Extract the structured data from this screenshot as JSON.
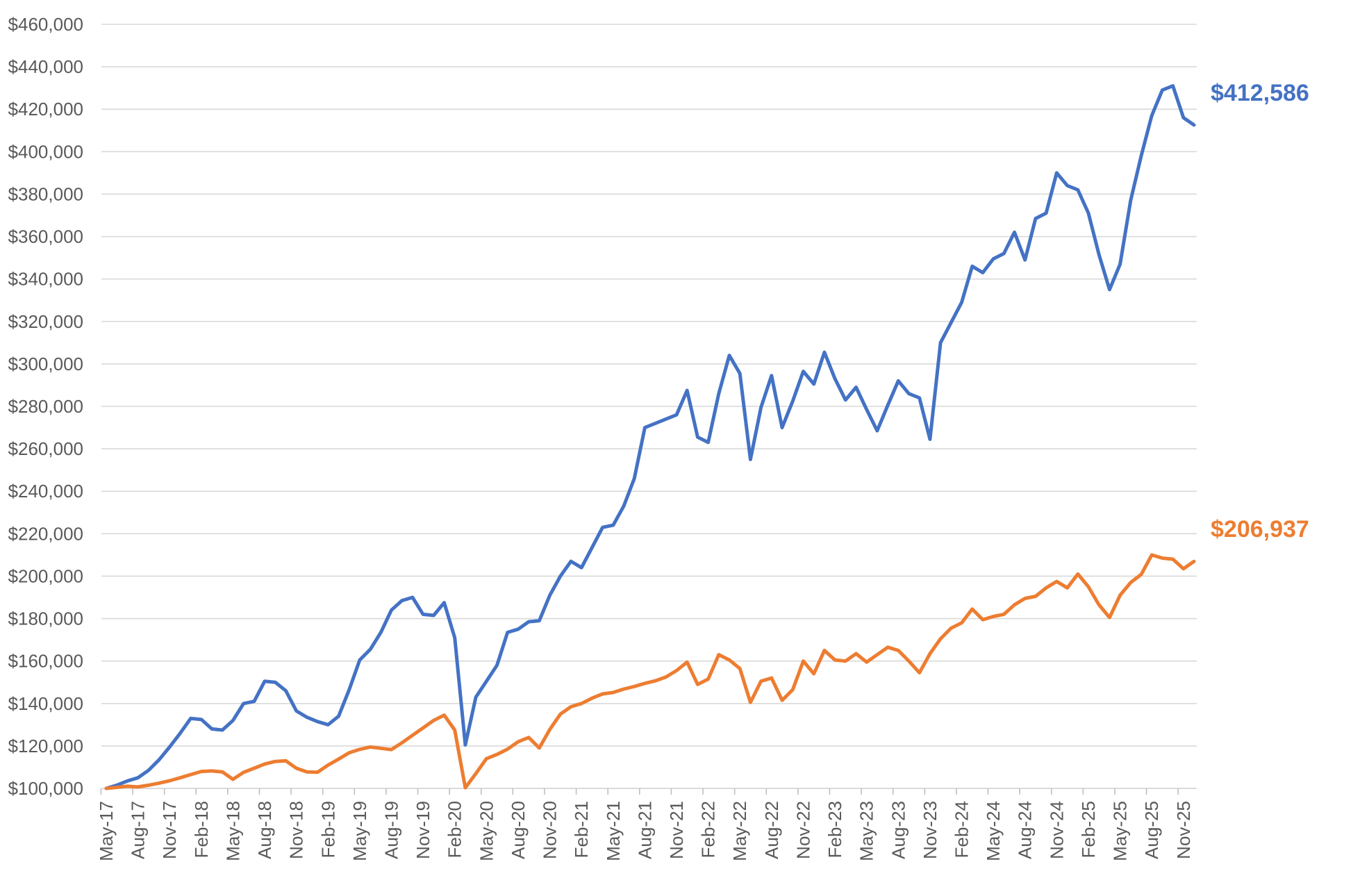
{
  "chart_data": {
    "type": "line",
    "title": "",
    "xlabel": "",
    "ylabel": "",
    "grid": "horizontal",
    "legend": "none",
    "ylim": [
      100000,
      460000
    ],
    "y_step": 20000,
    "y_tick_labels": [
      "$100,000",
      "$120,000",
      "$140,000",
      "$160,000",
      "$180,000",
      "$200,000",
      "$220,000",
      "$240,000",
      "$260,000",
      "$280,000",
      "$300,000",
      "$320,000",
      "$340,000",
      "$360,000",
      "$380,000",
      "$400,000",
      "$420,000",
      "$440,000",
      "$460,000"
    ],
    "x_tick_labels": [
      "May-17",
      "Aug-17",
      "Nov-17",
      "Feb-18",
      "May-18",
      "Aug-18",
      "Nov-18",
      "Feb-19",
      "May-19",
      "Aug-19",
      "Nov-19",
      "Feb-20",
      "May-20",
      "Aug-20",
      "Nov-20",
      "Feb-21",
      "May-21",
      "Aug-21",
      "Nov-21",
      "Feb-22",
      "May-22",
      "Aug-22",
      "Nov-22",
      "Feb-23",
      "May-23",
      "Aug-23",
      "Nov-23",
      "Feb-24",
      "May-24",
      "Aug-24",
      "Nov-24",
      "Feb-25",
      "May-25",
      "Aug-25",
      "Nov-25"
    ],
    "x_label_every": 3,
    "months": [
      "May-17",
      "Jun-17",
      "Jul-17",
      "Aug-17",
      "Sep-17",
      "Oct-17",
      "Nov-17",
      "Dec-17",
      "Jan-18",
      "Feb-18",
      "Mar-18",
      "Apr-18",
      "May-18",
      "Jun-18",
      "Jul-18",
      "Aug-18",
      "Sep-18",
      "Oct-18",
      "Nov-18",
      "Dec-18",
      "Jan-19",
      "Feb-19",
      "Mar-19",
      "Apr-19",
      "May-19",
      "Jun-19",
      "Jul-19",
      "Aug-19",
      "Sep-19",
      "Oct-19",
      "Nov-19",
      "Dec-19",
      "Jan-20",
      "Feb-20",
      "Mar-20",
      "Apr-20",
      "May-20",
      "Jun-20",
      "Jul-20",
      "Aug-20",
      "Sep-20",
      "Oct-20",
      "Nov-20",
      "Dec-20",
      "Jan-21",
      "Feb-21",
      "Mar-21",
      "Apr-21",
      "May-21",
      "Jun-21",
      "Jul-21",
      "Aug-21",
      "Sep-21",
      "Oct-21",
      "Nov-21",
      "Dec-21",
      "Jan-22",
      "Feb-22",
      "Mar-22",
      "Apr-22",
      "May-22",
      "Jun-22",
      "Jul-22",
      "Aug-22",
      "Sep-22",
      "Oct-22",
      "Nov-22",
      "Dec-22",
      "Jan-23",
      "Feb-23",
      "Mar-23",
      "Apr-23",
      "May-23",
      "Jun-23",
      "Jul-23",
      "Aug-23",
      "Sep-23",
      "Oct-23",
      "Nov-23",
      "Dec-23",
      "Jan-24",
      "Feb-24",
      "Mar-24",
      "Apr-24",
      "May-24",
      "Jun-24",
      "Jul-24",
      "Aug-24",
      "Sep-24",
      "Oct-24",
      "Nov-24",
      "Dec-24",
      "Jan-25",
      "Feb-25",
      "Mar-25",
      "Apr-25",
      "May-25",
      "Jun-25",
      "Jul-25",
      "Aug-25",
      "Sep-25",
      "Oct-25",
      "Nov-25",
      "Dec-25"
    ],
    "series": [
      {
        "id": "series1",
        "color": "#4472C4",
        "end_label": "$412,586",
        "values": [
          100000,
          101500,
          103500,
          105000,
          108500,
          113500,
          119500,
          126000,
          133000,
          132500,
          128000,
          127500,
          132000,
          140000,
          141000,
          150500,
          150000,
          146000,
          136500,
          133500,
          131500,
          130000,
          134000,
          146500,
          160500,
          165500,
          173500,
          184000,
          188500,
          190000,
          182000,
          181500,
          187500,
          171000,
          120500,
          143000,
          150500,
          158000,
          173500,
          175000,
          178500,
          179000,
          191000,
          200000,
          207000,
          204000,
          213500,
          223000,
          224000,
          233000,
          246000,
          270000,
          272000,
          274000,
          276000,
          287500,
          265500,
          263000,
          286000,
          304000,
          295500,
          255000,
          279500,
          294500,
          270000,
          282500,
          296500,
          290500,
          305500,
          293000,
          283000,
          289000,
          278500,
          268500,
          280500,
          292000,
          286000,
          284000,
          264500,
          310000,
          319500,
          329000,
          346000,
          343000,
          349500,
          352000,
          362000,
          349000,
          368500,
          371000,
          390000,
          384000,
          382000,
          371000,
          351500,
          335000,
          347000,
          377000,
          398000,
          417000,
          429000,
          431000,
          416000,
          412586
        ]
      },
      {
        "id": "series2",
        "color": "#ED7D31",
        "end_label": "$206,937",
        "values": [
          100000,
          100500,
          101000,
          100700,
          101500,
          102500,
          103600,
          105000,
          106500,
          108000,
          108200,
          107800,
          104300,
          107600,
          109500,
          111500,
          112700,
          113000,
          109500,
          107800,
          107600,
          111000,
          113800,
          116800,
          118400,
          119500,
          118900,
          118300,
          121500,
          125000,
          128500,
          132000,
          134500,
          127500,
          100300,
          107000,
          114000,
          116000,
          118500,
          122000,
          124000,
          119000,
          127800,
          135000,
          138500,
          140000,
          142500,
          144500,
          145200,
          146800,
          148000,
          149500,
          150700,
          152500,
          155500,
          159500,
          149000,
          151500,
          163000,
          160500,
          156500,
          140500,
          150500,
          152000,
          141500,
          146500,
          160000,
          154000,
          165000,
          160500,
          160000,
          163500,
          159500,
          163000,
          166500,
          165000,
          160000,
          154500,
          163500,
          170500,
          175500,
          178000,
          184500,
          179500,
          181000,
          182000,
          186500,
          189500,
          190500,
          194500,
          197500,
          194500,
          201000,
          195000,
          186500,
          180500,
          191000,
          197000,
          200800,
          210000,
          208500,
          208000,
          203500,
          206937
        ]
      }
    ],
    "colors": {
      "gridline": "#D9D9D9",
      "axis_line": "#D9D9D9",
      "tick": "#BFBFBF",
      "axis_text": "#595959",
      "background": "#FFFFFF"
    }
  }
}
